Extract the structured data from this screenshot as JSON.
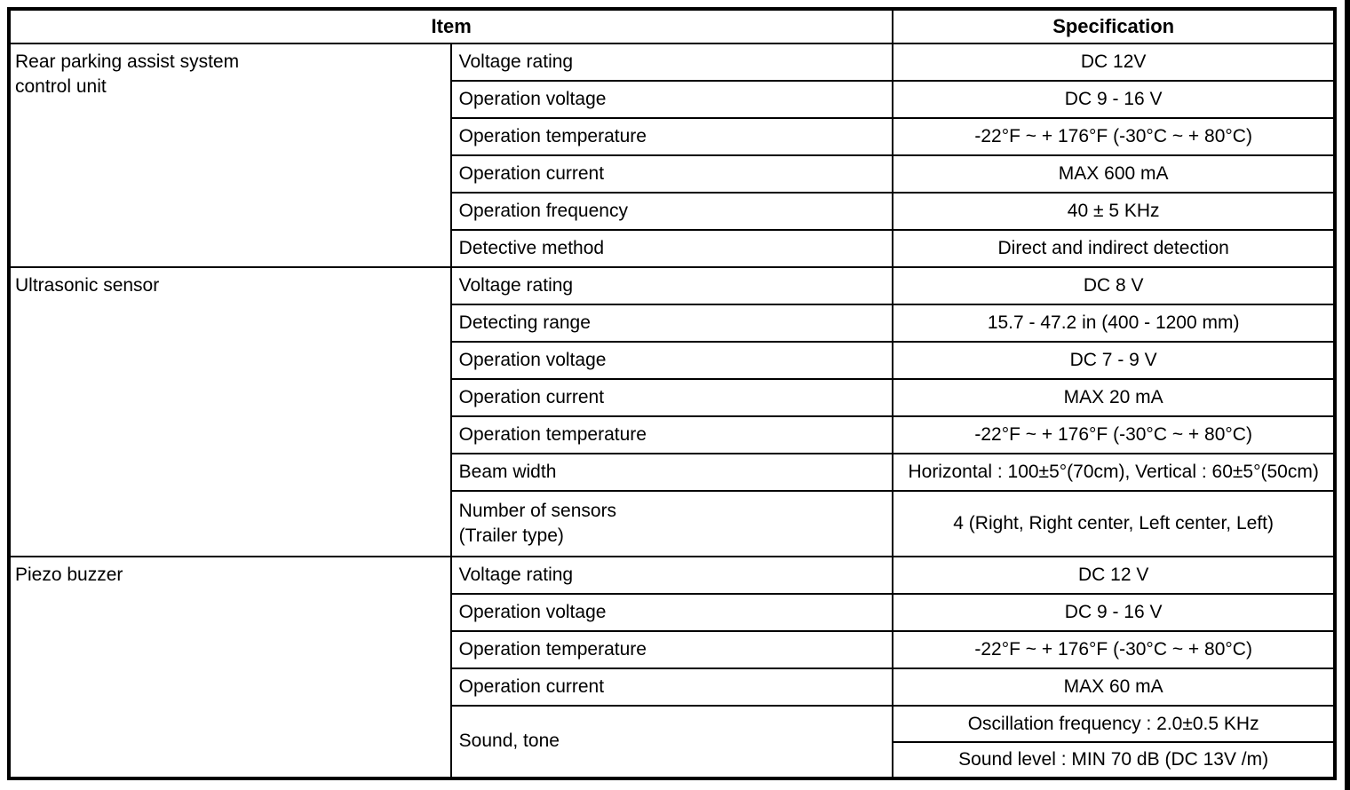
{
  "colors": {
    "line": "#000000",
    "background": "#ffffff"
  },
  "table": {
    "headers": {
      "item": "Item",
      "specification": "Specification"
    },
    "groups": [
      {
        "name": "Rear parking assist system\ncontrol unit",
        "rows": [
          {
            "label": "Voltage rating",
            "spec": "DC 12V"
          },
          {
            "label": "Operation voltage",
            "spec": "DC 9 - 16 V"
          },
          {
            "label": "Operation temperature",
            "spec": "-22°F ~ + 176°F (-30°C ~ + 80°C)"
          },
          {
            "label": "Operation current",
            "spec": "MAX 600 mA"
          },
          {
            "label": "Operation frequency",
            "spec": "40 ± 5 KHz"
          },
          {
            "label": "Detective method",
            "spec": "Direct and indirect detection"
          }
        ]
      },
      {
        "name": "Ultrasonic sensor",
        "rows": [
          {
            "label": "Voltage rating",
            "spec": "DC 8 V"
          },
          {
            "label": "Detecting range",
            "spec": "15.7 - 47.2 in (400 - 1200 mm)"
          },
          {
            "label": "Operation voltage",
            "spec": "DC 7 - 9 V"
          },
          {
            "label": "Operation current",
            "spec": "MAX 20 mA"
          },
          {
            "label": "Operation temperature",
            "spec": "-22°F ~ + 176°F (-30°C ~ + 80°C)"
          },
          {
            "label": "Beam width",
            "spec": "Horizontal : 100±5°(70cm), Vertical : 60±5°(50cm)"
          },
          {
            "label": "Number of sensors\n(Trailer type)",
            "spec": "4 (Right, Right center, Left center, Left)"
          }
        ]
      },
      {
        "name": "Piezo buzzer",
        "rows": [
          {
            "label": "Voltage rating",
            "spec": "DC 12 V"
          },
          {
            "label": "Operation voltage",
            "spec": "DC 9 - 16 V"
          },
          {
            "label": "Operation temperature",
            "spec": "-22°F ~ + 176°F (-30°C ~ + 80°C)"
          },
          {
            "label": "Operation current",
            "spec": "MAX 60 mA"
          }
        ],
        "sound_row": {
          "label": "Sound, tone",
          "specs": [
            "Oscillation frequency : 2.0±0.5 KHz",
            "Sound level : MIN 70 dB (DC 13V /m)"
          ]
        }
      }
    ]
  }
}
